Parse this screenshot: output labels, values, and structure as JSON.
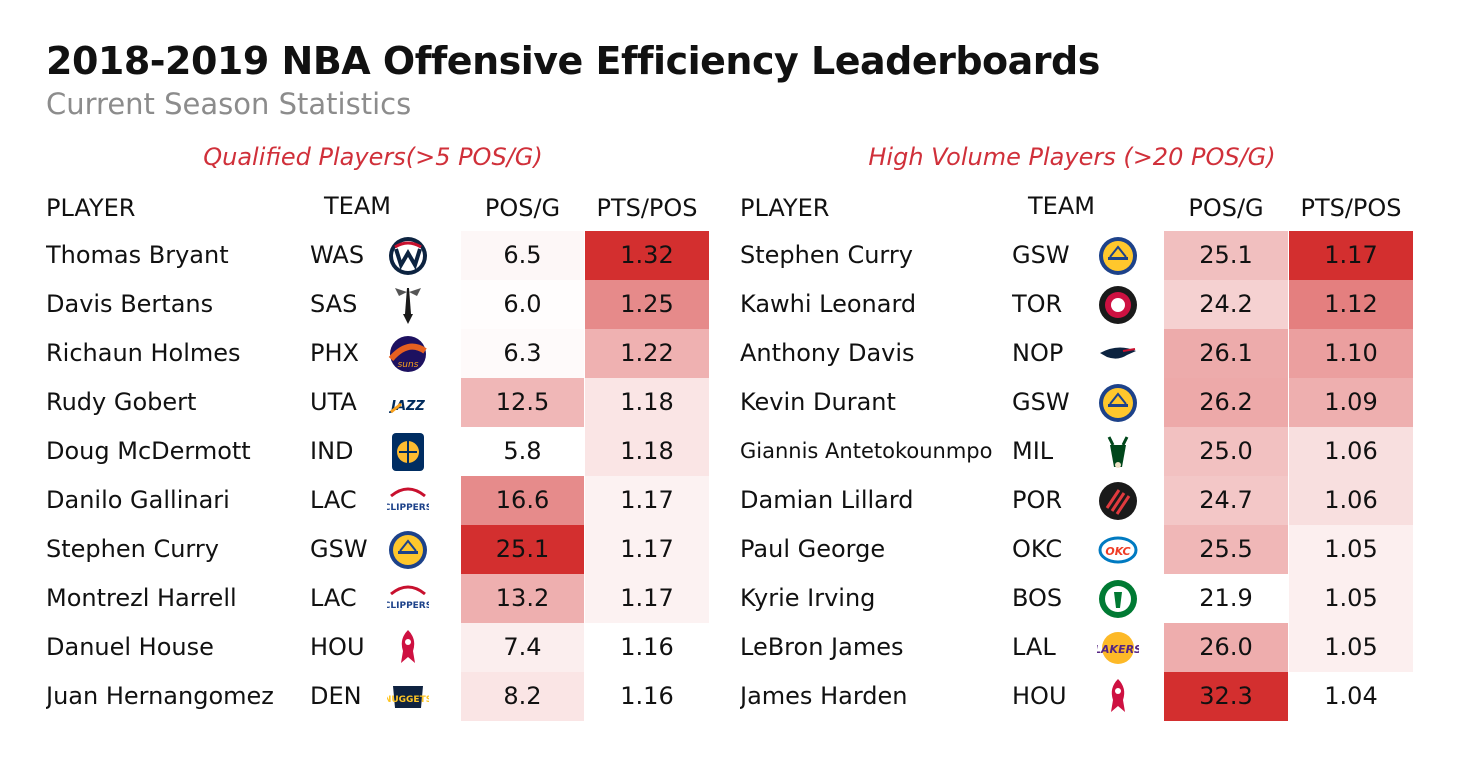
{
  "title": "2018-2019 NBA Offensive Efficiency Leaderboards",
  "subtitle": "Current Season Statistics",
  "colors": {
    "accent": "#d0303a",
    "heat_max": "#d32f2f",
    "heat_min": "#ffffff"
  },
  "chart_data": [
    {
      "type": "table",
      "title": "Qualified Players(>5 POS/G)",
      "columns": [
        "PLAYER",
        "TEAM",
        "POS/G",
        "PTS/POS"
      ],
      "rows": [
        {
          "player": "Thomas Bryant",
          "team": "WAS",
          "logo": "wizards-logo-icon",
          "pos_g": "6.5",
          "pts_pos": "1.32"
        },
        {
          "player": "Davis Bertans",
          "team": "SAS",
          "logo": "spurs-logo-icon",
          "pos_g": "6.0",
          "pts_pos": "1.25"
        },
        {
          "player": "Richaun Holmes",
          "team": "PHX",
          "logo": "suns-logo-icon",
          "pos_g": "6.3",
          "pts_pos": "1.22"
        },
        {
          "player": "Rudy Gobert",
          "team": "UTA",
          "logo": "jazz-logo-icon",
          "pos_g": "12.5",
          "pts_pos": "1.18"
        },
        {
          "player": "Doug McDermott",
          "team": "IND",
          "logo": "pacers-logo-icon",
          "pos_g": "5.8",
          "pts_pos": "1.18"
        },
        {
          "player": "Danilo Gallinari",
          "team": "LAC",
          "logo": "clippers-logo-icon",
          "pos_g": "16.6",
          "pts_pos": "1.17"
        },
        {
          "player": "Stephen Curry",
          "team": "GSW",
          "logo": "warriors-logo-icon",
          "pos_g": "25.1",
          "pts_pos": "1.17"
        },
        {
          "player": "Montrezl Harrell",
          "team": "LAC",
          "logo": "clippers-logo-icon",
          "pos_g": "13.2",
          "pts_pos": "1.17"
        },
        {
          "player": "Danuel House",
          "team": "HOU",
          "logo": "rockets-logo-icon",
          "pos_g": "7.4",
          "pts_pos": "1.16"
        },
        {
          "player": "Juan Hernangomez",
          "team": "DEN",
          "logo": "nuggets-logo-icon",
          "pos_g": "8.2",
          "pts_pos": "1.16"
        }
      ]
    },
    {
      "type": "table",
      "title": "High Volume Players (>20 POS/G)",
      "columns": [
        "PLAYER",
        "TEAM",
        "POS/G",
        "PTS/POS"
      ],
      "rows": [
        {
          "player": "Stephen Curry",
          "team": "GSW",
          "logo": "warriors-logo-icon",
          "pos_g": "25.1",
          "pts_pos": "1.17"
        },
        {
          "player": "Kawhi Leonard",
          "team": "TOR",
          "logo": "raptors-logo-icon",
          "pos_g": "24.2",
          "pts_pos": "1.12"
        },
        {
          "player": "Anthony Davis",
          "team": "NOP",
          "logo": "pelicans-logo-icon",
          "pos_g": "26.1",
          "pts_pos": "1.10"
        },
        {
          "player": "Kevin Durant",
          "team": "GSW",
          "logo": "warriors-logo-icon",
          "pos_g": "26.2",
          "pts_pos": "1.09"
        },
        {
          "player": "Giannis Antetokounmpo",
          "team": "MIL",
          "logo": "bucks-logo-icon",
          "pos_g": "25.0",
          "pts_pos": "1.06"
        },
        {
          "player": "Damian Lillard",
          "team": "POR",
          "logo": "blazers-logo-icon",
          "pos_g": "24.7",
          "pts_pos": "1.06"
        },
        {
          "player": "Paul George",
          "team": "OKC",
          "logo": "thunder-logo-icon",
          "pos_g": "25.5",
          "pts_pos": "1.05"
        },
        {
          "player": "Kyrie Irving",
          "team": "BOS",
          "logo": "celtics-logo-icon",
          "pos_g": "21.9",
          "pts_pos": "1.05"
        },
        {
          "player": "LeBron James",
          "team": "LAL",
          "logo": "lakers-logo-icon",
          "pos_g": "26.0",
          "pts_pos": "1.05"
        },
        {
          "player": "James Harden",
          "team": "HOU",
          "logo": "rockets-logo-icon",
          "pos_g": "32.3",
          "pts_pos": "1.04"
        }
      ]
    }
  ]
}
